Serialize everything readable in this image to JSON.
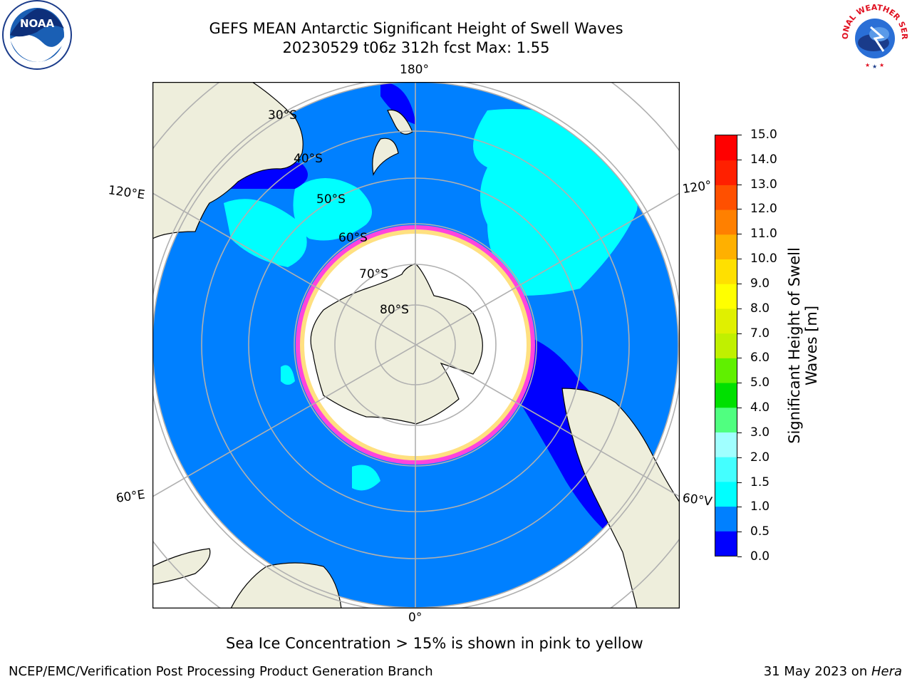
{
  "header": {
    "title_line1": "GEFS MEAN Antarctic Significant Height of Swell Waves",
    "title_line2": "20230529 t06z 312h fcst   Max: 1.55"
  },
  "map": {
    "projection": "south-polar-stereographic",
    "latitude_labels": [
      "30°S",
      "40°S",
      "50°S",
      "60°S",
      "70°S",
      "80°S"
    ],
    "longitude_labels": {
      "top": "180°",
      "bottom": "0°",
      "upper_left": "120°E",
      "lower_left": "60°E",
      "upper_right": "120°",
      "lower_right": "60°V"
    },
    "colors": {
      "ocean_0_5_to_1_0": "#0080ff",
      "ocean_0_to_0_5": "#0000ff",
      "swell_1_0_to_1_5": "#00ffff",
      "land": "#eeeedc",
      "sea_ice_inner": "#ffffff",
      "sea_ice_edge": "#ff44dd",
      "grid": "#b0b0b0"
    }
  },
  "colorbar": {
    "label_line1": "Significant Height of Swell",
    "label_line2": "Waves [m]",
    "ticks": [
      "15.0",
      "14.0",
      "13.0",
      "12.0",
      "11.0",
      "10.0",
      "9.0",
      "8.0",
      "7.0",
      "6.0",
      "5.0",
      "4.0",
      "3.0",
      "2.0",
      "1.5",
      "1.0",
      "0.5",
      "0.0"
    ],
    "bin_colors": [
      "#0000ff",
      "#0080ff",
      "#00ffff",
      "#44ffff",
      "#a0ffff",
      "#50ff80",
      "#00e000",
      "#60f000",
      "#c0f000",
      "#e0f000",
      "#ffff00",
      "#ffe000",
      "#ffb000",
      "#ff8000",
      "#ff5000",
      "#ff2000",
      "#ff0000"
    ]
  },
  "footer": {
    "note": "Sea Ice Concentration > 15% is shown in pink to yellow",
    "credit": "NCEP/EMC/Verification Post Processing Product Generation Branch",
    "date": "31 May 2023 on ",
    "machine": "Hera"
  },
  "logos": {
    "noaa_text": "NOAA",
    "nws_text": "NATIONAL WEATHER SERVICE"
  }
}
